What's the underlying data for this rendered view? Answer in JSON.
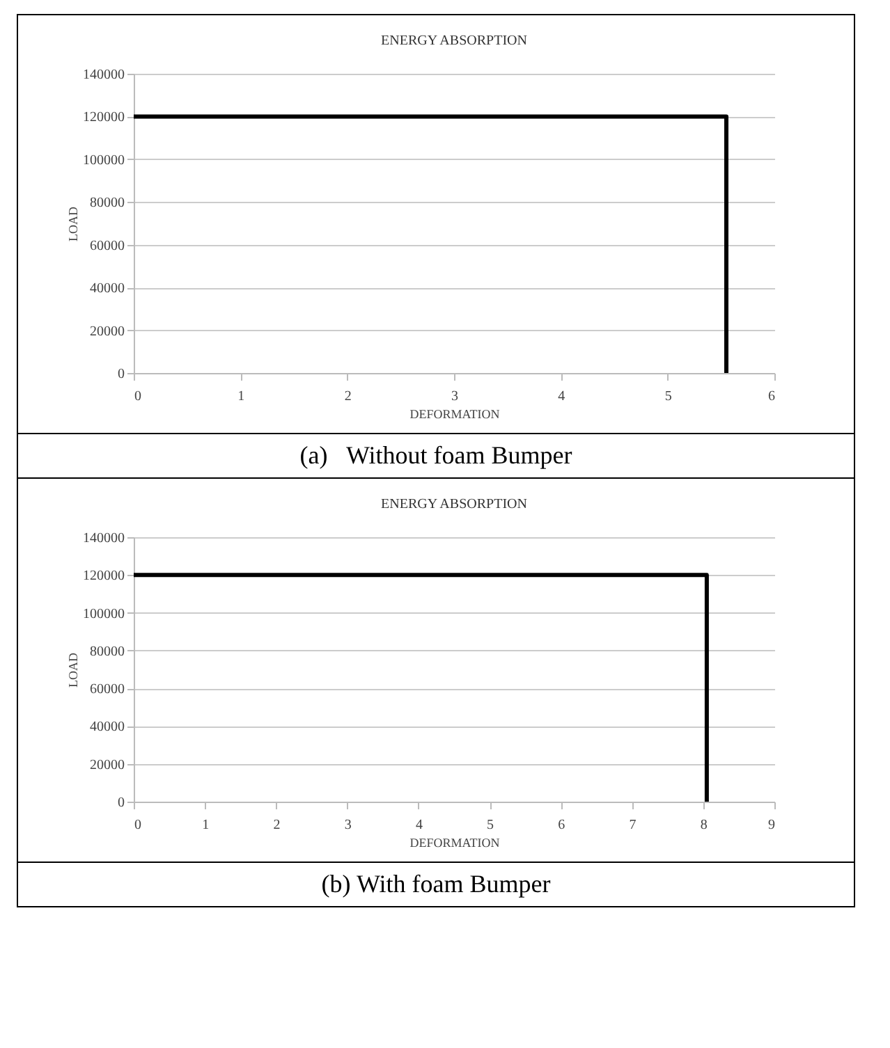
{
  "chart_data": [
    {
      "type": "line",
      "title": "ENERGY ABSORPTION",
      "xlabel": "DEFORMATION",
      "ylabel": "LOAD",
      "series": [
        {
          "color": "#000000",
          "x": [
            0,
            5.55,
            5.55
          ],
          "values": [
            120000,
            120000,
            0
          ]
        }
      ],
      "xlim": [
        0,
        6
      ],
      "xticks": [
        0,
        1,
        2,
        3,
        4,
        5,
        6
      ],
      "ylim": [
        0,
        140000
      ],
      "yticks": [
        0,
        20000,
        40000,
        60000,
        80000,
        100000,
        120000,
        140000
      ],
      "grid": "y",
      "annotations": [
        "(a)   Without foam Bumper"
      ]
    },
    {
      "type": "line",
      "title": "ENERGY ABSORPTION",
      "xlabel": "DEFORMATION",
      "ylabel": "LOAD",
      "series": [
        {
          "color": "#000000",
          "x": [
            0,
            8.05,
            8.05
          ],
          "values": [
            120000,
            120000,
            0
          ]
        }
      ],
      "xlim": [
        0,
        9
      ],
      "xticks": [
        0,
        1,
        2,
        3,
        4,
        5,
        6,
        7,
        8,
        9
      ],
      "ylim": [
        0,
        140000
      ],
      "yticks": [
        0,
        20000,
        40000,
        60000,
        80000,
        100000,
        120000,
        140000
      ],
      "grid": "y",
      "annotations": [
        "(b) With foam Bumper"
      ]
    }
  ]
}
